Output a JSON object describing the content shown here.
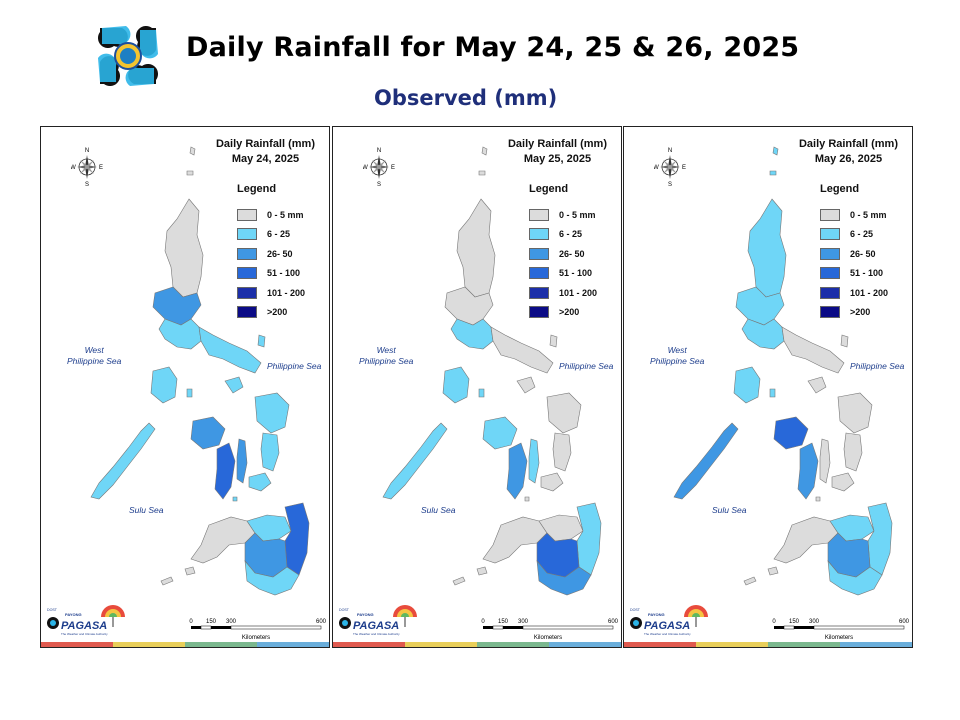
{
  "header": {
    "title": "Daily Rainfall for May 24, 25 & 26, 2025",
    "subtitle": "Observed (mm)"
  },
  "legend": {
    "title": "Legend",
    "items": [
      {
        "label": "0 - 5 mm",
        "color": "#dcdcdc"
      },
      {
        "label": "6 - 25",
        "color": "#6fd6f7"
      },
      {
        "label": "26- 50",
        "color": "#3f97e3"
      },
      {
        "label": "51 - 100",
        "color": "#2868d9"
      },
      {
        "label": "101 - 200",
        "color": "#1c2fa9"
      },
      {
        "label": ">200",
        "color": "#0b0b86"
      }
    ]
  },
  "seas": {
    "west": "West\nPhilippine Sea",
    "east": "Philippine Sea",
    "sulu": "Sulu Sea"
  },
  "compass": {
    "n": "N",
    "s": "S",
    "e": "E",
    "w": "W"
  },
  "scale": {
    "ticks": [
      "0",
      "150",
      "300",
      "600"
    ],
    "unit": "Kilometers"
  },
  "branding": {
    "agency": "PAGASA",
    "dost": "DOST",
    "payong": "PAYONG",
    "tagline": "The Weather and Climate Authority"
  },
  "stripe_colors": [
    "#e05a4f",
    "#e9cf5a",
    "#7bb88e",
    "#6aaedb"
  ],
  "maps": [
    {
      "title": "Daily Rainfall (mm)",
      "date": "May 24, 2025",
      "regions": {
        "north_luzon": "#dcdcdc",
        "central_luzon": "#3f97e3",
        "south_luzon": "#6fd6f7",
        "bicol": "#6fd6f7",
        "mindoro": "#6fd6f7",
        "palawan": "#6fd6f7",
        "panay": "#3f97e3",
        "negros": "#2868d9",
        "samar": "#6fd6f7",
        "leyte": "#6fd6f7",
        "cebu": "#3f97e3",
        "bohol": "#6fd6f7",
        "zamboanga": "#dcdcdc",
        "north_mindanao": "#6fd6f7",
        "east_mindanao": "#2868d9",
        "central_mindanao": "#3f97e3",
        "south_mindanao": "#6fd6f7"
      }
    },
    {
      "title": "Daily Rainfall (mm)",
      "date": "May 25, 2025",
      "regions": {
        "north_luzon": "#dcdcdc",
        "central_luzon": "#dcdcdc",
        "south_luzon": "#6fd6f7",
        "bicol": "#dcdcdc",
        "mindoro": "#6fd6f7",
        "palawan": "#6fd6f7",
        "panay": "#6fd6f7",
        "negros": "#3f97e3",
        "samar": "#dcdcdc",
        "leyte": "#dcdcdc",
        "cebu": "#6fd6f7",
        "bohol": "#dcdcdc",
        "zamboanga": "#dcdcdc",
        "north_mindanao": "#dcdcdc",
        "east_mindanao": "#6fd6f7",
        "central_mindanao": "#2868d9",
        "south_mindanao": "#3f97e3"
      }
    },
    {
      "title": "Daily Rainfall (mm)",
      "date": "May 26, 2025",
      "regions": {
        "north_luzon": "#6fd6f7",
        "central_luzon": "#6fd6f7",
        "south_luzon": "#6fd6f7",
        "bicol": "#dcdcdc",
        "mindoro": "#6fd6f7",
        "palawan": "#3f97e3",
        "panay": "#2868d9",
        "negros": "#3f97e3",
        "samar": "#dcdcdc",
        "leyte": "#dcdcdc",
        "cebu": "#dcdcdc",
        "bohol": "#dcdcdc",
        "zamboanga": "#dcdcdc",
        "north_mindanao": "#6fd6f7",
        "east_mindanao": "#6fd6f7",
        "central_mindanao": "#3f97e3",
        "south_mindanao": "#6fd6f7"
      }
    }
  ]
}
